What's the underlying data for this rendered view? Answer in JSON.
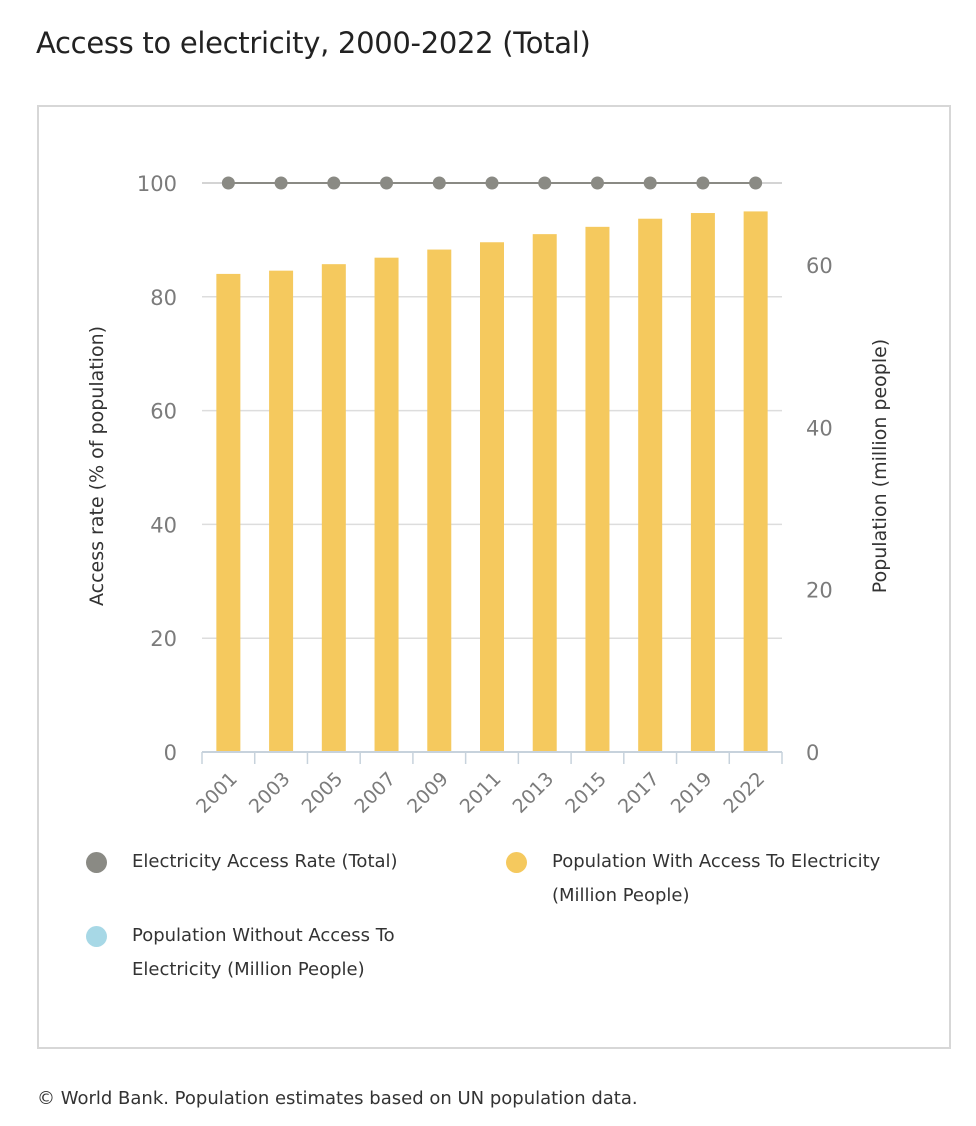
{
  "page": {
    "title": "Access to electricity, 2000-2022 (Total)",
    "source": "© World Bank. Population estimates based on UN population data."
  },
  "colors": {
    "access_rate": "#8a8a84",
    "with_access": "#f5c95e",
    "without_access": "#a7d8e6",
    "grid": "#dddddd",
    "axis": "#c7d2dc",
    "tick_text": "#7b7b7b",
    "axis_title": "#333333"
  },
  "chart_data": {
    "type": "bar",
    "title": "Access to electricity, 2000-2022 (Total)",
    "categories": [
      "2001",
      "2003",
      "2005",
      "2007",
      "2009",
      "2011",
      "2013",
      "2015",
      "2017",
      "2019",
      "2022"
    ],
    "ylabel": "Access rate (% of population)",
    "ylabel_right": "Population (million people)",
    "ylim": [
      0,
      100
    ],
    "ylim_right": [
      0,
      70.1
    ],
    "yticks": [
      0,
      20,
      40,
      60,
      80,
      100
    ],
    "yticks_right": [
      0,
      20,
      40,
      60
    ],
    "grid": true,
    "legend_position": "bottom",
    "series": [
      {
        "name": "Electricity Access Rate (Total)",
        "type": "line-points",
        "axis": "left",
        "color": "#8a8a84",
        "values": [
          100,
          100,
          100,
          100,
          100,
          100,
          100,
          100,
          100,
          100,
          100
        ]
      },
      {
        "name": "Population With Access To Electricity (Million People)",
        "type": "bar",
        "axis": "right",
        "color": "#f5c95e",
        "values": [
          58.9,
          59.3,
          60.1,
          60.9,
          61.9,
          62.8,
          63.8,
          64.7,
          65.7,
          66.4,
          66.6
        ]
      },
      {
        "name": "Population Without Access To Electricity (Million People)",
        "type": "bar",
        "axis": "right",
        "color": "#a7d8e6",
        "values": [
          0,
          0,
          0,
          0,
          0,
          0,
          0,
          0,
          0,
          0,
          0
        ]
      }
    ]
  },
  "legend": {
    "items": [
      {
        "label": "Electricity Access Rate (Total)",
        "color": "#8a8a84"
      },
      {
        "label": "Population With Access To Electricity (Million People)",
        "color": "#f5c95e"
      },
      {
        "label": "Population Without Access To Electricity (Million People)",
        "color": "#a7d8e6"
      }
    ]
  }
}
